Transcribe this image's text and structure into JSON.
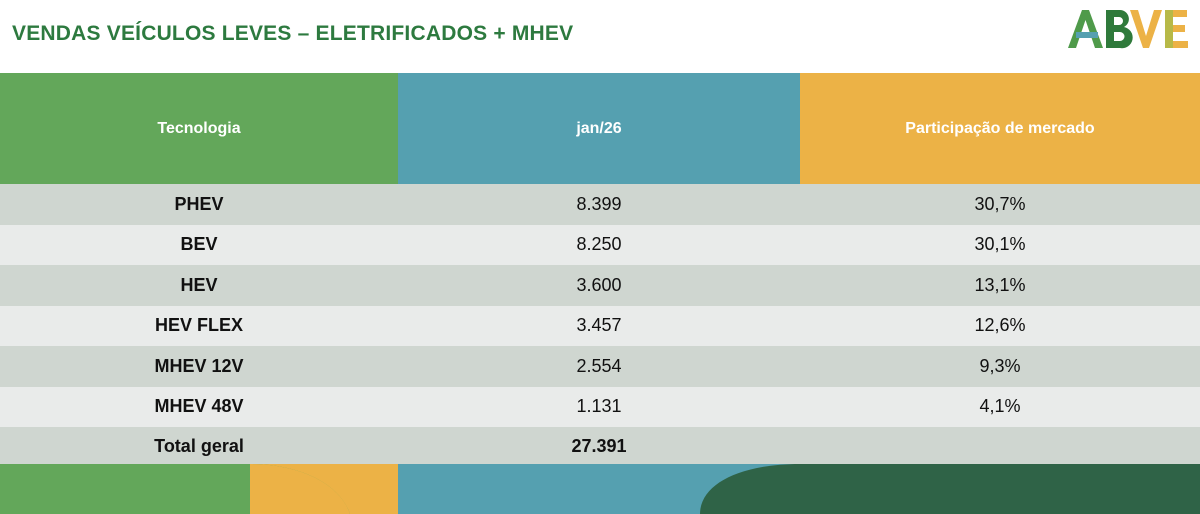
{
  "header": {
    "title": "VENDAS VEÍCULOS LEVES – ELETRIFICADOS + MHEV",
    "logo_text": "ABVE"
  },
  "table": {
    "columns": [
      "Tecnologia",
      "jan/26",
      "Participação de mercado"
    ],
    "rows": [
      {
        "tecnologia": "PHEV",
        "vendas": "8.399",
        "participacao": "30,7%"
      },
      {
        "tecnologia": "BEV",
        "vendas": "8.250",
        "participacao": "30,1%"
      },
      {
        "tecnologia": "HEV",
        "vendas": "3.600",
        "participacao": "13,1%"
      },
      {
        "tecnologia": "HEV FLEX",
        "vendas": "3.457",
        "participacao": "12,6%"
      },
      {
        "tecnologia": "MHEV 12V",
        "vendas": "2.554",
        "participacao": "9,3%"
      },
      {
        "tecnologia": "MHEV 48V",
        "vendas": "1.131",
        "participacao": "4,1%"
      }
    ],
    "total": {
      "tecnologia": "Total geral",
      "vendas": "27.391",
      "participacao": ""
    }
  },
  "colors": {
    "title": "#2d7a3f",
    "green": "#63a75a",
    "teal": "#55a0b0",
    "orange": "#ecb246",
    "dark_green": "#2f6347",
    "row_dark": "#cfd6d0",
    "row_light": "#e9ebea"
  }
}
